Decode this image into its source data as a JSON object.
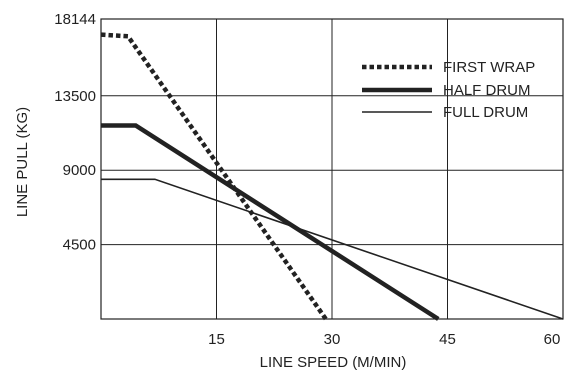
{
  "chart_data": {
    "type": "line",
    "xlabel": "LINE SPEED (M/MIN)",
    "ylabel": "LINE PULL (KG)",
    "xlim": [
      0,
      60
    ],
    "ylim": [
      0,
      18144
    ],
    "x_ticks": [
      15,
      30,
      45,
      60
    ],
    "y_ticks": [
      4500,
      9000,
      13500,
      18144
    ],
    "grid": true,
    "legend_position": "top-right",
    "series": [
      {
        "name": "FIRST WRAP",
        "style": "dotted",
        "points": [
          [
            0,
            17200
          ],
          [
            3.5,
            17100
          ],
          [
            29.2,
            0
          ]
        ]
      },
      {
        "name": "HALF DRUM",
        "style": "thick",
        "points": [
          [
            0,
            11700
          ],
          [
            4.5,
            11700
          ],
          [
            43.8,
            0
          ]
        ]
      },
      {
        "name": "FULL DRUM",
        "style": "thin",
        "points": [
          [
            0,
            8450
          ],
          [
            7,
            8450
          ],
          [
            60,
            0
          ]
        ]
      }
    ],
    "colors": {
      "line": "#222222",
      "grid": "#222222"
    }
  }
}
